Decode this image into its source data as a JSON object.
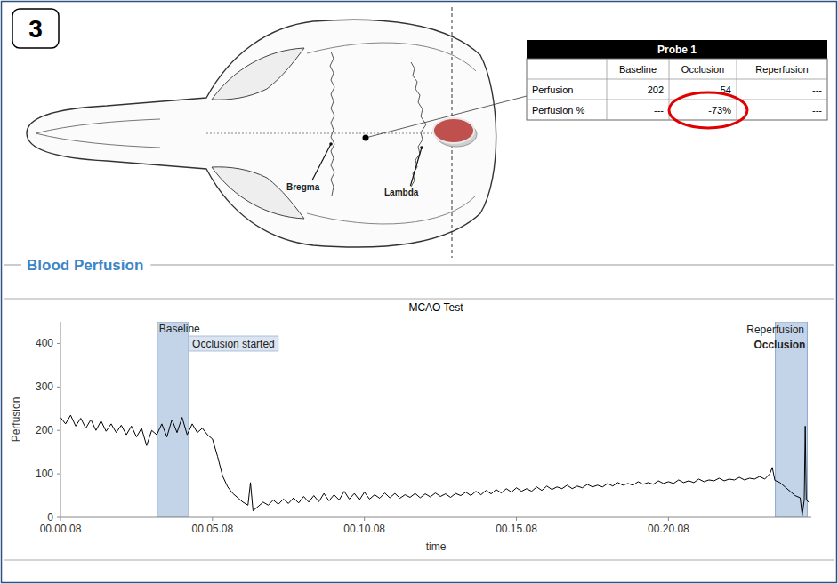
{
  "panel_label": "3",
  "diagram": {
    "landmarks": [
      "Bregma",
      "Lambda"
    ]
  },
  "table": {
    "title": "Probe 1",
    "columns": [
      "Baseline",
      "Occlusion",
      "Reperfusion"
    ],
    "rows": [
      [
        "Perfusion",
        202,
        54,
        "---"
      ],
      [
        "Perfusion %",
        "---",
        "-73%",
        "---"
      ]
    ]
  },
  "section_title": "Blood Perfusion",
  "chart_data": {
    "type": "line",
    "title": "MCAO Test",
    "x_label": "time",
    "y_label": "Perfusion",
    "color": "#000000",
    "grid": false,
    "xlim": [
      8,
      1490
    ],
    "xticks": [
      {
        "value": 8,
        "label": "00.00.08"
      },
      {
        "value": 308,
        "label": "00.05.08"
      },
      {
        "value": 608,
        "label": "00.10.08"
      },
      {
        "value": 908,
        "label": "00.15.08"
      },
      {
        "value": 1208,
        "label": "00.20.08"
      }
    ],
    "ylim": [
      0,
      450
    ],
    "yticks": [
      0,
      100,
      200,
      300,
      400
    ],
    "annotations": [
      {
        "text": "Baseline",
        "start": 199,
        "end": 261
      },
      {
        "text": "Occlusion started",
        "x": 261
      },
      {
        "text": "Reperfusion",
        "x": 1419
      },
      {
        "text": "Occlusion",
        "start": 1419,
        "end": 1482
      }
    ],
    "x": [
      8,
      18,
      28,
      38,
      48,
      58,
      68,
      78,
      88,
      98,
      108,
      118,
      128,
      138,
      148,
      158,
      168,
      178,
      188,
      198,
      208,
      218,
      228,
      238,
      248,
      258,
      268,
      278,
      288,
      298,
      308,
      318,
      328,
      338,
      348,
      358,
      368,
      378,
      383,
      388,
      398,
      408,
      418,
      428,
      438,
      448,
      458,
      468,
      478,
      488,
      498,
      508,
      518,
      528,
      538,
      548,
      558,
      568,
      578,
      588,
      598,
      608,
      618,
      628,
      638,
      648,
      658,
      668,
      678,
      688,
      698,
      708,
      718,
      728,
      738,
      748,
      758,
      768,
      778,
      788,
      798,
      808,
      818,
      828,
      838,
      848,
      858,
      868,
      878,
      888,
      898,
      908,
      918,
      928,
      938,
      948,
      958,
      968,
      978,
      988,
      998,
      1008,
      1018,
      1028,
      1038,
      1048,
      1058,
      1068,
      1078,
      1088,
      1098,
      1108,
      1118,
      1128,
      1138,
      1148,
      1158,
      1168,
      1178,
      1188,
      1198,
      1208,
      1218,
      1228,
      1238,
      1248,
      1258,
      1268,
      1278,
      1288,
      1298,
      1308,
      1318,
      1328,
      1338,
      1348,
      1358,
      1368,
      1378,
      1388,
      1398,
      1408,
      1413,
      1418,
      1428,
      1438,
      1448,
      1458,
      1468,
      1472,
      1476,
      1478,
      1480,
      1485
    ],
    "values": [
      230,
      215,
      235,
      210,
      228,
      205,
      225,
      200,
      222,
      198,
      215,
      195,
      212,
      190,
      210,
      185,
      205,
      165,
      200,
      190,
      215,
      185,
      225,
      195,
      230,
      190,
      215,
      195,
      205,
      190,
      180,
      140,
      95,
      70,
      55,
      45,
      35,
      28,
      80,
      15,
      25,
      35,
      28,
      40,
      30,
      42,
      32,
      45,
      33,
      48,
      35,
      50,
      36,
      55,
      38,
      52,
      40,
      60,
      42,
      55,
      40,
      58,
      42,
      52,
      44,
      56,
      45,
      55,
      44,
      52,
      46,
      55,
      45,
      54,
      47,
      56,
      48,
      54,
      46,
      55,
      50,
      58,
      50,
      60,
      52,
      62,
      54,
      64,
      56,
      66,
      58,
      68,
      60,
      66,
      60,
      70,
      62,
      72,
      64,
      70,
      66,
      74,
      66,
      72,
      68,
      76,
      70,
      74,
      70,
      78,
      72,
      80,
      74,
      78,
      74,
      82,
      76,
      80,
      76,
      84,
      78,
      82,
      78,
      86,
      80,
      84,
      80,
      88,
      82,
      86,
      84,
      90,
      84,
      88,
      86,
      92,
      86,
      90,
      88,
      94,
      88,
      100,
      115,
      85,
      80,
      70,
      60,
      50,
      45,
      5,
      40,
      210,
      40,
      35
    ]
  }
}
